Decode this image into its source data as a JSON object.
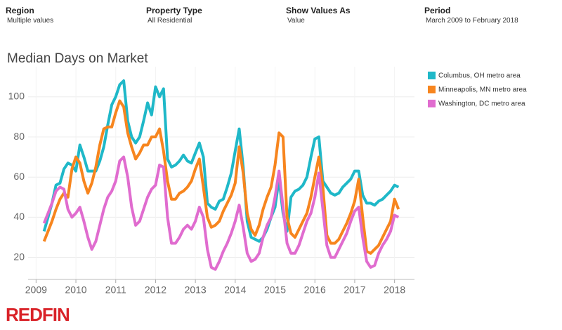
{
  "filters": [
    {
      "label": "Region",
      "value": "Multiple values"
    },
    {
      "label": "Property Type",
      "value": "All Residential"
    },
    {
      "label": "Show Values As",
      "value": "Value"
    },
    {
      "label": "Period",
      "value": "March 2009 to February 2018"
    }
  ],
  "chart_data": {
    "type": "line",
    "title": "Median Days on Market",
    "x": [
      2009.2,
      2009.3,
      2009.4,
      2009.5,
      2009.6,
      2009.7,
      2009.8,
      2009.9,
      2010.0,
      2010.1,
      2010.2,
      2010.3,
      2010.4,
      2010.5,
      2010.6,
      2010.7,
      2010.8,
      2010.9,
      2011.0,
      2011.1,
      2011.2,
      2011.3,
      2011.4,
      2011.5,
      2011.6,
      2011.7,
      2011.8,
      2011.9,
      2012.0,
      2012.1,
      2012.2,
      2012.3,
      2012.4,
      2012.5,
      2012.6,
      2012.7,
      2012.8,
      2012.9,
      2013.0,
      2013.1,
      2013.2,
      2013.3,
      2013.4,
      2013.5,
      2013.6,
      2013.7,
      2013.8,
      2013.9,
      2014.0,
      2014.1,
      2014.2,
      2014.3,
      2014.4,
      2014.5,
      2014.6,
      2014.7,
      2014.8,
      2014.9,
      2015.0,
      2015.1,
      2015.2,
      2015.3,
      2015.4,
      2015.5,
      2015.6,
      2015.7,
      2015.8,
      2015.9,
      2016.0,
      2016.1,
      2016.2,
      2016.3,
      2016.4,
      2016.5,
      2016.6,
      2016.7,
      2016.8,
      2016.9,
      2017.0,
      2017.1,
      2017.2,
      2017.3,
      2017.4,
      2017.5,
      2017.6,
      2017.7,
      2017.8,
      2017.9,
      2018.0,
      2018.1
    ],
    "series": [
      {
        "name": "Columbus, OH metro area",
        "color": "#1fb8c8",
        "values": [
          33,
          40,
          47,
          56,
          57,
          64,
          67,
          66,
          63,
          76,
          70,
          63,
          63,
          63,
          68,
          75,
          86,
          96,
          100,
          106,
          108,
          88,
          80,
          77,
          80,
          88,
          97,
          91,
          105,
          100,
          104,
          69,
          65,
          66,
          68,
          71,
          68,
          67,
          72,
          77,
          70,
          47,
          45,
          44,
          48,
          49,
          55,
          62,
          73,
          84,
          65,
          38,
          30,
          29,
          28,
          30,
          34,
          40,
          45,
          59,
          42,
          33,
          50,
          53,
          54,
          56,
          60,
          70,
          79,
          80,
          58,
          55,
          52,
          51,
          52,
          55,
          57,
          59,
          63,
          63,
          51,
          47,
          47,
          46,
          48,
          49,
          51,
          53,
          56,
          55
        ]
      },
      {
        "name": "Minneapolis, MN metro area",
        "color": "#f7851e",
        "values": [
          28,
          33,
          38,
          44,
          49,
          52,
          50,
          64,
          70,
          67,
          58,
          52,
          57,
          65,
          76,
          84,
          85,
          85,
          92,
          98,
          95,
          82,
          75,
          69,
          72,
          76,
          76,
          80,
          80,
          84,
          73,
          58,
          49,
          49,
          52,
          53,
          55,
          58,
          64,
          69,
          55,
          40,
          35,
          36,
          38,
          43,
          47,
          51,
          57,
          75,
          62,
          42,
          34,
          31,
          36,
          44,
          50,
          55,
          66,
          82,
          80,
          40,
          32,
          30,
          34,
          38,
          42,
          50,
          60,
          70,
          55,
          31,
          27,
          27,
          29,
          33,
          37,
          42,
          48,
          59,
          40,
          23,
          22,
          24,
          26,
          30,
          34,
          38,
          49,
          44
        ]
      },
      {
        "name": "Washington, DC metro area",
        "color": "#e06ccf",
        "values": [
          37,
          42,
          47,
          53,
          55,
          54,
          44,
          40,
          42,
          45,
          38,
          30,
          24,
          28,
          36,
          44,
          50,
          53,
          58,
          68,
          70,
          60,
          45,
          36,
          38,
          44,
          50,
          54,
          56,
          66,
          65,
          40,
          27,
          27,
          30,
          34,
          36,
          34,
          38,
          45,
          40,
          24,
          15,
          14,
          18,
          23,
          27,
          32,
          38,
          46,
          35,
          22,
          18,
          19,
          22,
          30,
          36,
          40,
          50,
          63,
          45,
          27,
          22,
          22,
          26,
          32,
          38,
          42,
          50,
          62,
          44,
          26,
          20,
          20,
          24,
          28,
          32,
          38,
          43,
          45,
          30,
          18,
          15,
          16,
          22,
          26,
          29,
          33,
          41,
          40
        ]
      }
    ],
    "xlim": [
      2008.8,
      2018.5
    ],
    "xticks": [
      2009,
      2010,
      2011,
      2012,
      2013,
      2014,
      2015,
      2016,
      2017,
      2018
    ],
    "ylim": [
      9,
      115
    ],
    "yticks": [
      20,
      40,
      60,
      80,
      100
    ],
    "grid": true,
    "legend": "right"
  },
  "brand": "REDFIN"
}
